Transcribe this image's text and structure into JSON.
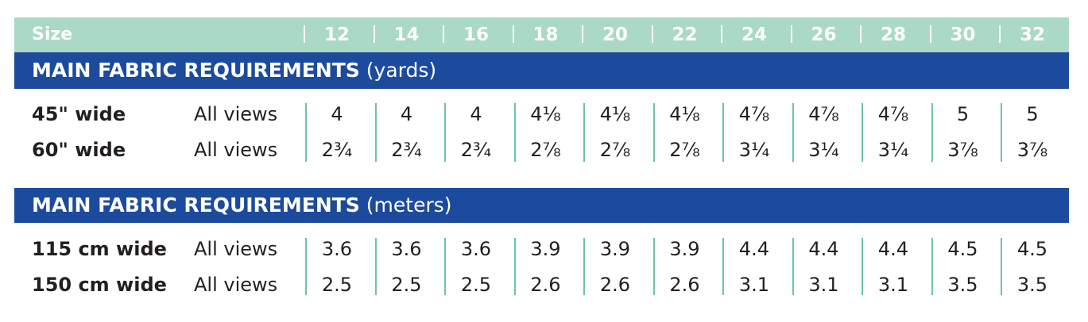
{
  "size_header": {
    "label": "Size",
    "sizes": [
      "12",
      "14",
      "16",
      "18",
      "20",
      "22",
      "24",
      "26",
      "28",
      "30",
      "32"
    ]
  },
  "sections": [
    {
      "title_bold": "MAIN FABRIC REQUIREMENTS",
      "title_unit": "(yards)",
      "rows": [
        {
          "label": "45\" wide",
          "views": "All views",
          "values": [
            "4",
            "4",
            "4",
            "4⅛",
            "4⅛",
            "4⅛",
            "4⅞",
            "4⅞",
            "4⅞",
            "5",
            "5"
          ]
        },
        {
          "label": "60\" wide",
          "views": "All views",
          "values": [
            "2¾",
            "2¾",
            "2¾",
            "2⅞",
            "2⅞",
            "2⅞",
            "3¼",
            "3¼",
            "3¼",
            "3⅞",
            "3⅞"
          ]
        }
      ]
    },
    {
      "title_bold": "MAIN FABRIC REQUIREMENTS",
      "title_unit": "(meters)",
      "rows": [
        {
          "label": "115 cm wide",
          "views": "All views",
          "values": [
            "3.6",
            "3.6",
            "3.6",
            "3.9",
            "3.9",
            "3.9",
            "4.4",
            "4.4",
            "4.4",
            "4.5",
            "4.5"
          ]
        },
        {
          "label": "150 cm wide",
          "views": "All views",
          "values": [
            "2.5",
            "2.5",
            "2.5",
            "2.6",
            "2.6",
            "2.6",
            "3.1",
            "3.1",
            "3.1",
            "3.5",
            "3.5"
          ]
        }
      ]
    }
  ],
  "colors": {
    "size_header_bg": "#aad9c5",
    "section_header_bg": "#1c4b9d",
    "separator_green": "#6cc4a4",
    "text": "#231f20"
  }
}
